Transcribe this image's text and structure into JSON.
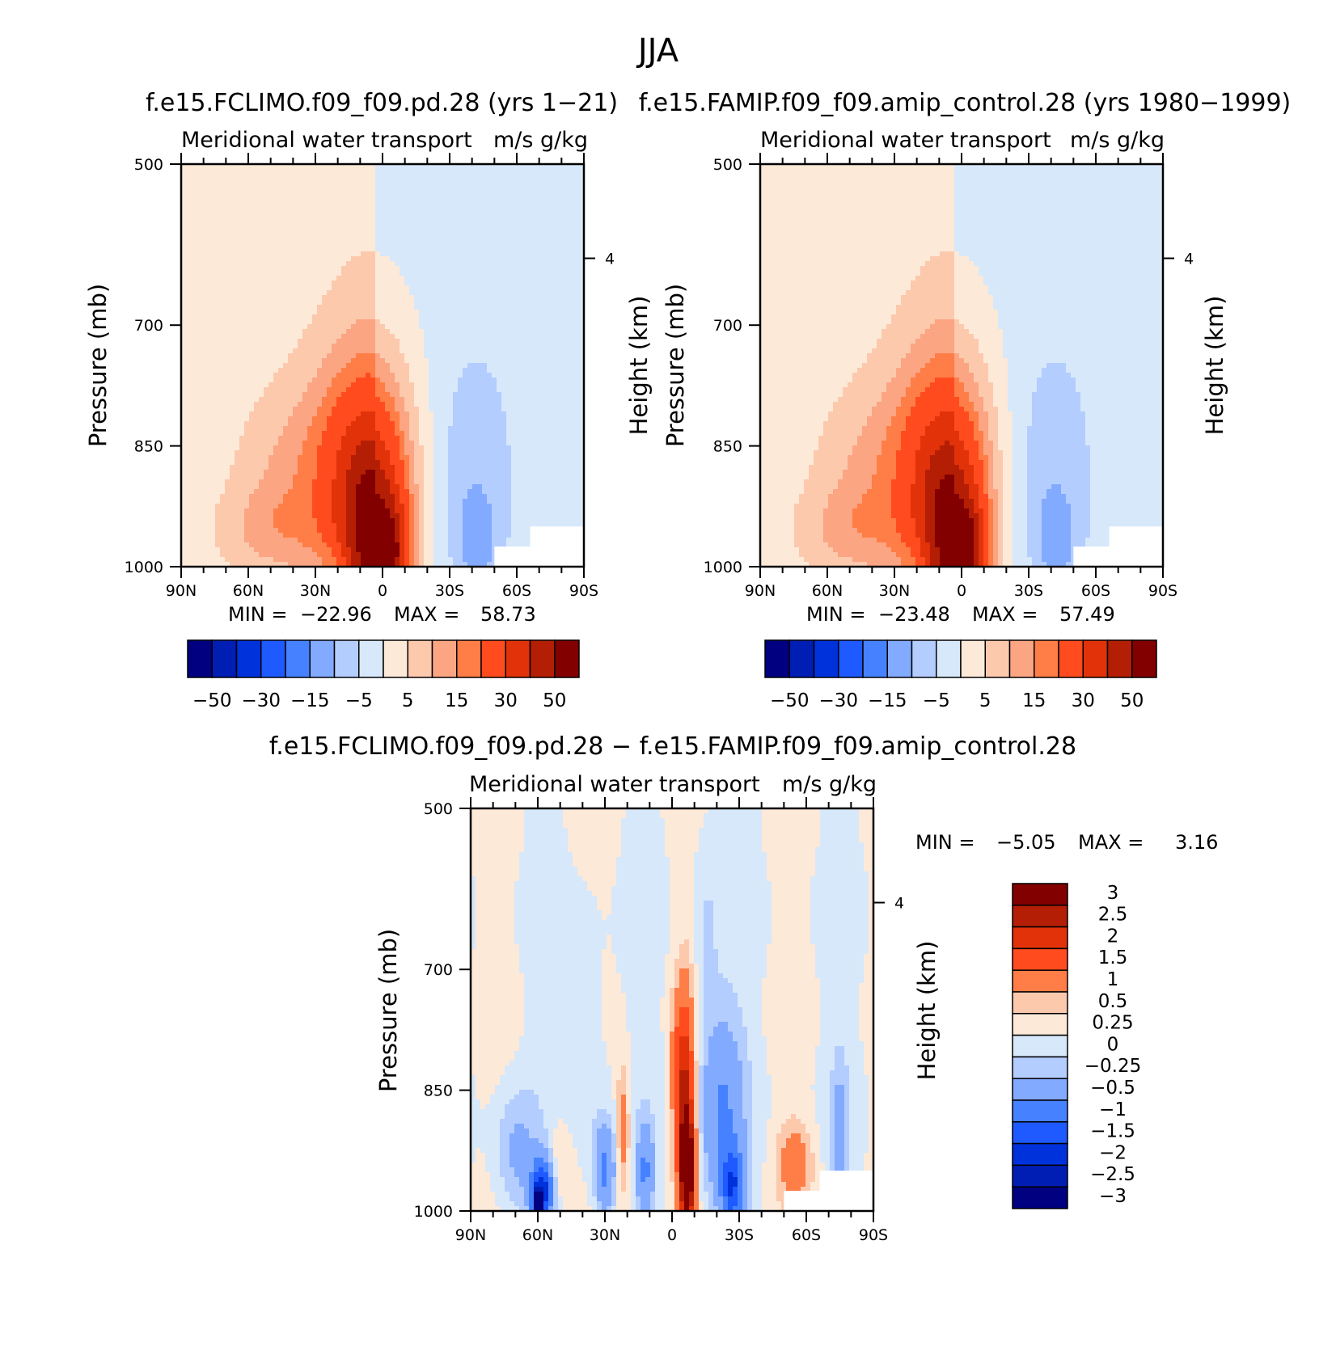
{
  "figure": {
    "title": "JJA"
  },
  "palettes": {
    "main": [
      "#000080",
      "#001eb4",
      "#0032dc",
      "#1e5aff",
      "#4682ff",
      "#82aaff",
      "#b4cdff",
      "#d7e8fa",
      "#fde9d8",
      "#fcc9ad",
      "#fba583",
      "#ff7d46",
      "#ff4b1e",
      "#e1320a",
      "#b41e05",
      "#820000"
    ],
    "diff": [
      "#000080",
      "#001eb4",
      "#0032dc",
      "#1e5aff",
      "#4682ff",
      "#82aaff",
      "#b4cdff",
      "#d7e8fa",
      "#fde9d8",
      "#fcc9ad",
      "#ff7d46",
      "#ff4b1e",
      "#e1320a",
      "#b41e05",
      "#820000"
    ]
  },
  "chart_data": [
    {
      "id": "top-left",
      "type": "heatmap",
      "title": "f.e15.FCLIMO.f09_f09.pd.28 (yrs 1−21)",
      "left_label": "Meridional water transport",
      "right_label": "m/s g/kg",
      "ylabel": "Pressure (mb)",
      "ylabel_right": "Height (km)",
      "x_ticks": [
        "90N",
        "60N",
        "30N",
        "0",
        "30S",
        "60S",
        "90S"
      ],
      "y_ticks": [
        "500",
        "700",
        "850",
        "1000"
      ],
      "y_tick_values": [
        500,
        700,
        850,
        1000
      ],
      "y_right_ticks": [
        "4"
      ],
      "y_right_tick_pressure": [
        617
      ],
      "ylim": [
        500,
        1000
      ],
      "xlim": [
        90,
        -90
      ],
      "stats": {
        "min_label": "MIN =",
        "min": "−22.96",
        "max_label": "MAX =",
        "max": "58.73"
      },
      "colorbar": {
        "orientation": "horizontal",
        "labels": [
          "−50",
          "−30",
          "−15",
          "−5",
          "5",
          "15",
          "30",
          "50"
        ]
      },
      "blobs": [
        {
          "lat": 5,
          "p": 920,
          "w": 22,
          "h": 210,
          "v": 22
        },
        {
          "lat": 5,
          "p": 965,
          "w": 14,
          "h": 130,
          "v": 32
        },
        {
          "lat": -4,
          "p": 985,
          "w": 7,
          "h": 60,
          "v": 24
        },
        {
          "lat": 24,
          "p": 870,
          "w": 24,
          "h": 120,
          "v": 9
        },
        {
          "lat": 50,
          "p": 955,
          "w": 22,
          "h": 55,
          "v": 8
        },
        {
          "lat": 48,
          "p": 880,
          "w": 20,
          "h": 90,
          "v": 4
        },
        {
          "lat": -40,
          "p": 880,
          "w": 18,
          "h": 150,
          "v": -6
        },
        {
          "lat": -42,
          "p": 970,
          "w": 9,
          "h": 60,
          "v": -8
        },
        {
          "lat": 20,
          "p": 990,
          "w": 7,
          "h": 25,
          "v": -6
        }
      ]
    },
    {
      "id": "top-right",
      "type": "heatmap",
      "title": "f.e15.FAMIP.f09_f09.amip_control.28 (yrs 1980−1999)",
      "left_label": "Meridional water transport",
      "right_label": "m/s g/kg",
      "ylabel": "Pressure (mb)",
      "ylabel_right": "Height (km)",
      "x_ticks": [
        "90N",
        "60N",
        "30N",
        "0",
        "30S",
        "60S",
        "90S"
      ],
      "y_ticks": [
        "500",
        "700",
        "850",
        "1000"
      ],
      "y_tick_values": [
        500,
        700,
        850,
        1000
      ],
      "y_right_ticks": [
        "4"
      ],
      "y_right_tick_pressure": [
        617
      ],
      "ylim": [
        500,
        1000
      ],
      "xlim": [
        90,
        -90
      ],
      "stats": {
        "min_label": "MIN =",
        "min": "−23.48",
        "max_label": "MAX =",
        "max": "57.49"
      },
      "colorbar": {
        "orientation": "horizontal",
        "labels": [
          "−50",
          "−30",
          "−15",
          "−5",
          "5",
          "15",
          "30",
          "50"
        ]
      },
      "blobs": [
        {
          "lat": 5,
          "p": 920,
          "w": 22,
          "h": 210,
          "v": 22
        },
        {
          "lat": 5,
          "p": 965,
          "w": 14,
          "h": 130,
          "v": 31
        },
        {
          "lat": -4,
          "p": 985,
          "w": 7,
          "h": 60,
          "v": 23
        },
        {
          "lat": 24,
          "p": 870,
          "w": 24,
          "h": 120,
          "v": 9
        },
        {
          "lat": 50,
          "p": 955,
          "w": 22,
          "h": 55,
          "v": 8
        },
        {
          "lat": 48,
          "p": 880,
          "w": 20,
          "h": 90,
          "v": 4
        },
        {
          "lat": -40,
          "p": 880,
          "w": 18,
          "h": 150,
          "v": -6
        },
        {
          "lat": -42,
          "p": 970,
          "w": 9,
          "h": 60,
          "v": -8
        },
        {
          "lat": 20,
          "p": 990,
          "w": 7,
          "h": 25,
          "v": -6
        }
      ]
    },
    {
      "id": "bottom",
      "type": "heatmap",
      "title": "f.e15.FCLIMO.f09_f09.pd.28 − f.e15.FAMIP.f09_f09.amip_control.28",
      "left_label": "Meridional water transport",
      "right_label": "m/s g/kg",
      "ylabel": "Pressure (mb)",
      "ylabel_right": "Height (km)",
      "x_ticks": [
        "90N",
        "60N",
        "30N",
        "0",
        "30S",
        "60S",
        "90S"
      ],
      "y_ticks": [
        "500",
        "700",
        "850",
        "1000"
      ],
      "y_tick_values": [
        500,
        700,
        850,
        1000
      ],
      "y_right_ticks": [
        "4"
      ],
      "y_right_tick_pressure": [
        617
      ],
      "ylim": [
        500,
        1000
      ],
      "xlim": [
        90,
        -90
      ],
      "stats": {
        "min_label": "MIN =",
        "min": "−5.05",
        "max_label": "MAX =",
        "max": "3.16"
      },
      "colorbar": {
        "orientation": "vertical",
        "labels": [
          "3",
          "2.5",
          "2",
          "1.5",
          "1",
          "0.5",
          "0.25",
          "0",
          "−0.25",
          "−0.5",
          "−1",
          "−1.5",
          "−2",
          "−2.5",
          "−3"
        ]
      },
      "blobs": [
        {
          "lat": -6,
          "p": 880,
          "w": 4,
          "h": 140,
          "v": 2.2
        },
        {
          "lat": -7,
          "p": 950,
          "w": 3,
          "h": 60,
          "v": 2.6
        },
        {
          "lat": -2,
          "p": 820,
          "w": 3,
          "h": 90,
          "v": 0.6
        },
        {
          "lat": -22,
          "p": 880,
          "w": 10,
          "h": 130,
          "v": -1.0
        },
        {
          "lat": -27,
          "p": 970,
          "w": 5,
          "h": 45,
          "v": -1.6
        },
        {
          "lat": 58,
          "p": 975,
          "w": 5,
          "h": 40,
          "v": -2.2
        },
        {
          "lat": 60,
          "p": 990,
          "w": 2,
          "h": 14,
          "v": -4.0
        },
        {
          "lat": 70,
          "p": 930,
          "w": 10,
          "h": 80,
          "v": -0.6
        },
        {
          "lat": 30,
          "p": 950,
          "w": 5,
          "h": 60,
          "v": -1.2
        },
        {
          "lat": 22,
          "p": 900,
          "w": 3,
          "h": 80,
          "v": 0.8
        },
        {
          "lat": 12,
          "p": 950,
          "w": 4,
          "h": 60,
          "v": -1.0
        },
        {
          "lat": 50,
          "p": 940,
          "w": 5,
          "h": 50,
          "v": 0.4
        },
        {
          "lat": -55,
          "p": 940,
          "w": 8,
          "h": 50,
          "v": 0.7
        },
        {
          "lat": -75,
          "p": 910,
          "w": 4,
          "h": 100,
          "v": -0.6
        },
        {
          "lat": 38,
          "p": 780,
          "w": 8,
          "h": 160,
          "v": -0.3
        },
        {
          "lat": -15,
          "p": 650,
          "w": 6,
          "h": 150,
          "v": -0.3
        }
      ]
    }
  ]
}
